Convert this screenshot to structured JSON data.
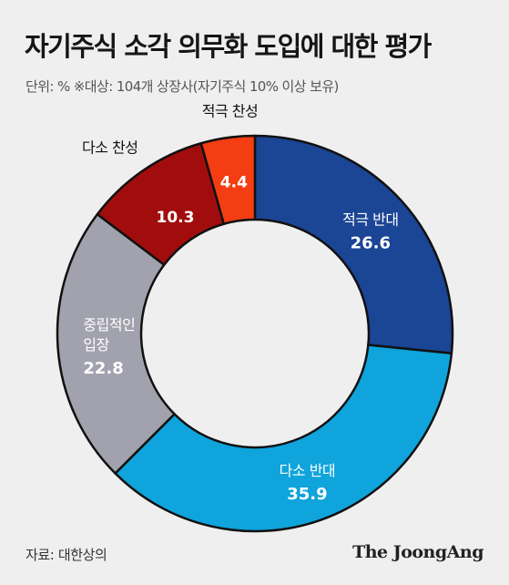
{
  "header": {
    "title": "자기주식 소각 의무화 도입에 대한 평가",
    "subtitle": "단위: %   ※대상: 104개 상장사(자기주식 10% 이상 보유)"
  },
  "footer": {
    "source": "자료: 대한상의",
    "brand": "The JoongAng"
  },
  "chart_data": {
    "type": "pie",
    "style": "donut",
    "unit": "%",
    "slices": [
      {
        "label": "적극 반대",
        "value": 26.6,
        "color": "#1b4595"
      },
      {
        "label": "다소 반대",
        "value": 35.9,
        "color": "#0fa4db"
      },
      {
        "label": "중립적인 입장",
        "value": 22.8,
        "color": "#a2a2ae"
      },
      {
        "label": "다소 찬성",
        "value": 10.3,
        "color": "#a10d0d"
      },
      {
        "label": "적극 찬성",
        "value": 4.4,
        "color": "#f43d12"
      }
    ]
  }
}
